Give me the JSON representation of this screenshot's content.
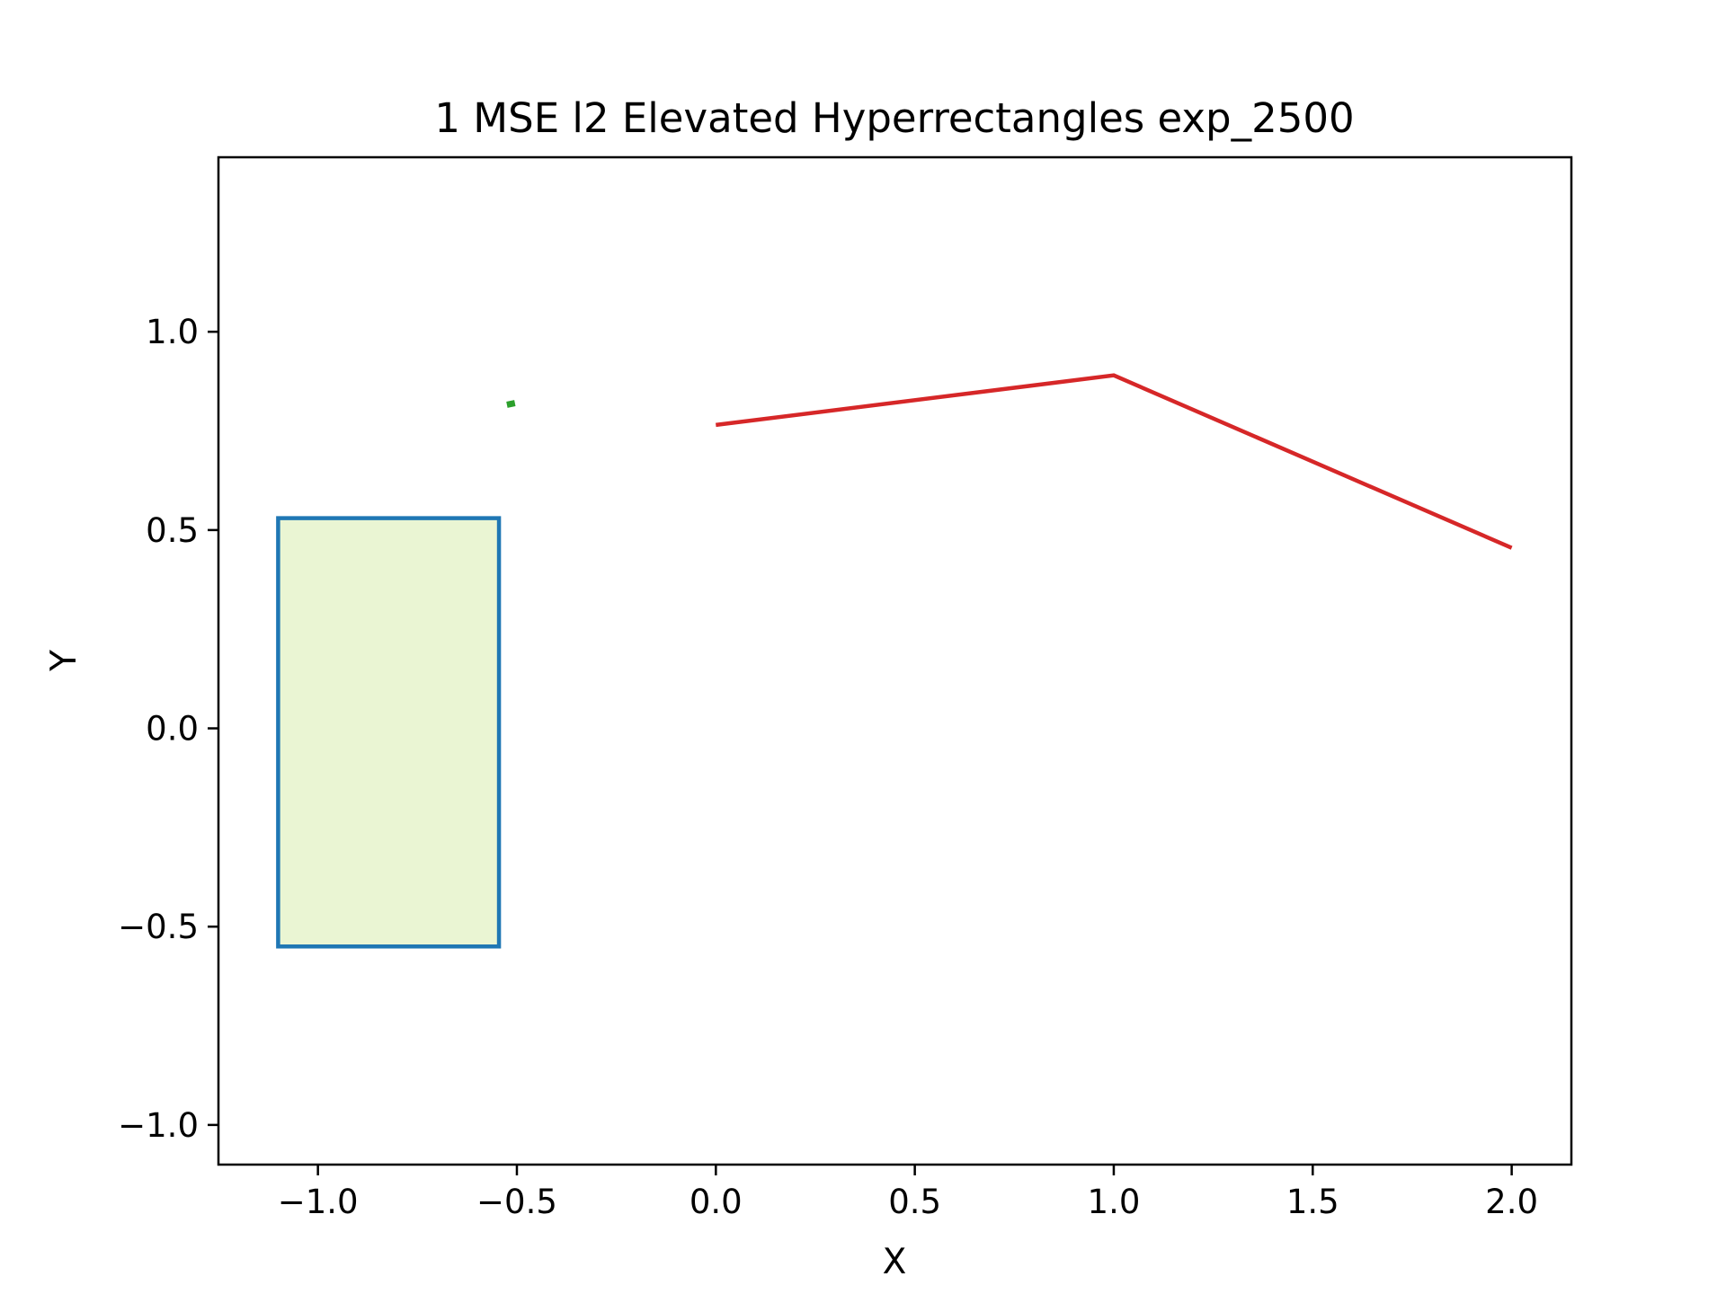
{
  "chart_data": {
    "type": "line",
    "title": "1 MSE l2 Elevated Hyperrectangles exp_2500",
    "xlabel": "X",
    "ylabel": "Y",
    "xlim": [
      -1.25,
      2.15
    ],
    "ylim": [
      -1.1,
      1.44
    ],
    "xticks": [
      -1.0,
      -0.5,
      0.0,
      0.5,
      1.0,
      1.5,
      2.0
    ],
    "xtick_labels": [
      "−1.0",
      "−0.5",
      "0.0",
      "0.5",
      "1.0",
      "1.5",
      "2.0"
    ],
    "yticks": [
      -1.0,
      -0.5,
      0.0,
      0.5,
      1.0
    ],
    "ytick_labels": [
      "−1.0",
      "−0.5",
      "0.0",
      "0.5",
      "1.0"
    ],
    "grid": false,
    "rectangle": {
      "x": [
        -1.1,
        -0.545
      ],
      "y": [
        -0.55,
        0.53
      ],
      "edge_color": "#1f77b4",
      "fill_color": "#eaf5d3"
    },
    "series": [
      {
        "color": "#2ca02c",
        "x": [
          -0.525,
          -0.505
        ],
        "y": [
          0.816,
          0.82
        ]
      },
      {
        "color": "#d62728",
        "x": [
          0.0,
          1.0,
          2.0
        ],
        "y": [
          0.765,
          0.89,
          0.455
        ]
      }
    ]
  }
}
